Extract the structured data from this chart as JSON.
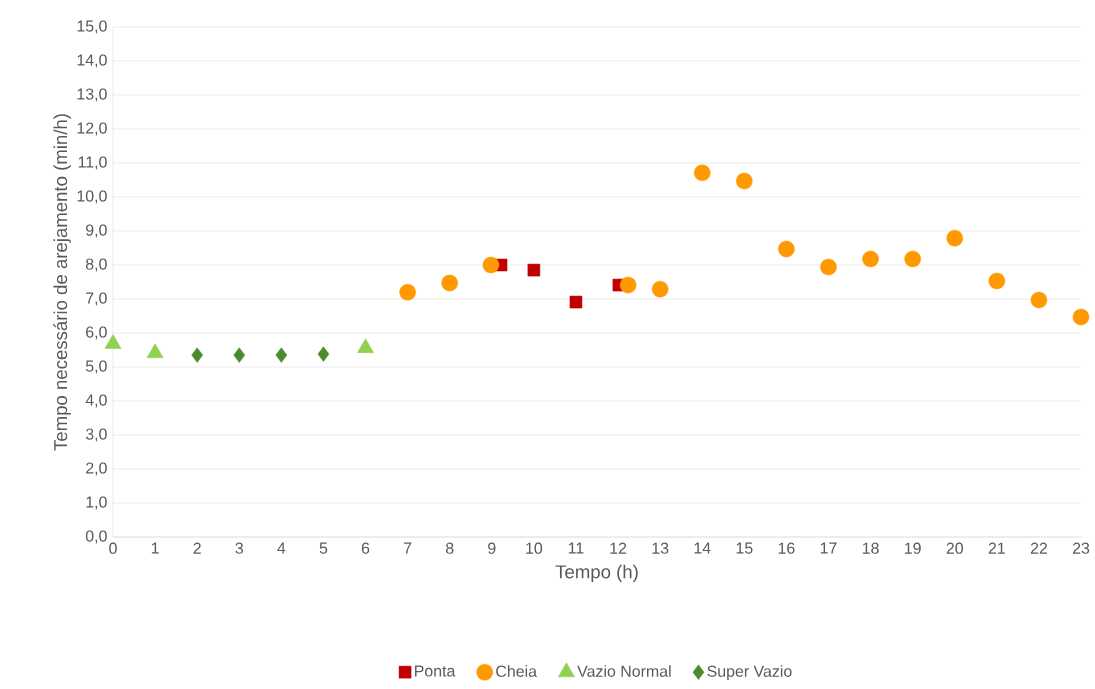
{
  "chart_data": {
    "type": "scatter",
    "xlabel": "Tempo (h)",
    "ylabel": "Tempo necessário de arejamento (min/h)",
    "xlim": [
      0,
      23
    ],
    "ylim": [
      0,
      15
    ],
    "xticks": [
      0,
      1,
      2,
      3,
      4,
      5,
      6,
      7,
      8,
      9,
      10,
      11,
      12,
      13,
      14,
      15,
      16,
      17,
      18,
      19,
      20,
      21,
      22,
      23
    ],
    "yticks": [
      {
        "value": 0,
        "label": "0,0"
      },
      {
        "value": 1,
        "label": "1,0"
      },
      {
        "value": 2,
        "label": "2,0"
      },
      {
        "value": 3,
        "label": "3,0"
      },
      {
        "value": 4,
        "label": "4,0"
      },
      {
        "value": 5,
        "label": "5,0"
      },
      {
        "value": 6,
        "label": "6,0"
      },
      {
        "value": 7,
        "label": "7,0"
      },
      {
        "value": 8,
        "label": "8,0"
      },
      {
        "value": 9,
        "label": "9,0"
      },
      {
        "value": 10,
        "label": "10,0"
      },
      {
        "value": 11,
        "label": "11,0"
      },
      {
        "value": 12,
        "label": "12,0"
      },
      {
        "value": 13,
        "label": "13,0"
      },
      {
        "value": 14,
        "label": "14,0"
      },
      {
        "value": 15,
        "label": "15,0"
      }
    ],
    "grid": "y",
    "legend": "bottom",
    "series": [
      {
        "name": "Ponta",
        "color": "#c00000",
        "marker": "square",
        "x": [
          9.22,
          10,
          11,
          12.02
        ],
        "values": [
          8.0,
          7.85,
          6.91,
          7.41
        ]
      },
      {
        "name": "Cheia",
        "color": "#ff9900",
        "marker": "circle",
        "x": [
          7,
          8,
          8.98,
          12.24,
          13,
          14,
          15,
          16,
          17,
          18,
          19,
          20,
          21,
          22,
          23
        ],
        "values": [
          7.2,
          7.47,
          8.0,
          7.41,
          7.29,
          10.71,
          10.47,
          8.47,
          7.94,
          8.18,
          8.18,
          8.79,
          7.53,
          6.97,
          6.47
        ]
      },
      {
        "name": "Vazio Normal",
        "color": "#92d050",
        "marker": "triangle",
        "x": [
          0,
          1,
          6
        ],
        "values": [
          5.68,
          5.41,
          5.56
        ]
      },
      {
        "name": "Super Vazio",
        "color": "#4a8b2c",
        "marker": "diamond",
        "x": [
          2,
          3,
          4,
          5
        ],
        "values": [
          5.35,
          5.35,
          5.35,
          5.38
        ]
      }
    ]
  }
}
